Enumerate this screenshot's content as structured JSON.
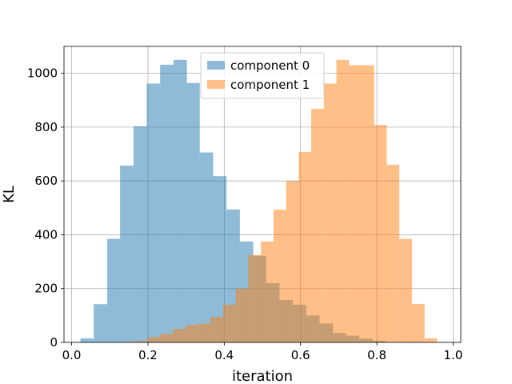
{
  "chart_data": {
    "type": "bar",
    "title": "",
    "xlabel": "iteration",
    "ylabel": "KL",
    "xlim": [
      -0.02,
      1.02
    ],
    "ylim": [
      0,
      1100
    ],
    "xticks": [
      0.0,
      0.2,
      0.4,
      0.6,
      0.8,
      1.0
    ],
    "xtick_labels": [
      "0.0",
      "0.2",
      "0.4",
      "0.6",
      "0.8",
      "1.0"
    ],
    "yticks": [
      0,
      200,
      400,
      600,
      800,
      1000
    ],
    "ytick_labels": [
      "0",
      "200",
      "400",
      "600",
      "800",
      "1000"
    ],
    "grid": true,
    "legend_position": "top-center",
    "series": [
      {
        "name": "component 0",
        "color": "#1f77b4",
        "opacity": 0.5,
        "bins": [
          [
            0.023,
            0.058,
            15
          ],
          [
            0.058,
            0.093,
            142
          ],
          [
            0.093,
            0.127,
            385
          ],
          [
            0.127,
            0.162,
            657
          ],
          [
            0.162,
            0.197,
            803
          ],
          [
            0.197,
            0.232,
            962
          ],
          [
            0.232,
            0.267,
            1032
          ],
          [
            0.267,
            0.302,
            1050
          ],
          [
            0.302,
            0.336,
            964
          ],
          [
            0.336,
            0.371,
            706
          ],
          [
            0.371,
            0.406,
            618
          ],
          [
            0.406,
            0.441,
            494
          ],
          [
            0.441,
            0.476,
            375
          ],
          [
            0.476,
            0.51,
            322
          ],
          [
            0.51,
            0.545,
            220
          ],
          [
            0.545,
            0.58,
            158
          ],
          [
            0.58,
            0.615,
            140
          ],
          [
            0.615,
            0.65,
            100
          ],
          [
            0.65,
            0.685,
            70
          ],
          [
            0.685,
            0.719,
            35
          ],
          [
            0.719,
            0.754,
            25
          ],
          [
            0.754,
            0.789,
            14
          ],
          [
            0.789,
            0.824,
            6
          ]
        ]
      },
      {
        "name": "component 1",
        "color": "#ff7f0e",
        "opacity": 0.5,
        "bins": [
          [
            0.1,
            0.133,
            1
          ],
          [
            0.133,
            0.166,
            2
          ],
          [
            0.166,
            0.199,
            5
          ],
          [
            0.199,
            0.232,
            20
          ],
          [
            0.232,
            0.265,
            32
          ],
          [
            0.265,
            0.298,
            50
          ],
          [
            0.298,
            0.331,
            65
          ],
          [
            0.331,
            0.364,
            70
          ],
          [
            0.364,
            0.397,
            95
          ],
          [
            0.397,
            0.43,
            140
          ],
          [
            0.43,
            0.463,
            200
          ],
          [
            0.463,
            0.496,
            325
          ],
          [
            0.496,
            0.529,
            375
          ],
          [
            0.529,
            0.562,
            493
          ],
          [
            0.562,
            0.595,
            600
          ],
          [
            0.595,
            0.628,
            708
          ],
          [
            0.628,
            0.661,
            868
          ],
          [
            0.661,
            0.694,
            962
          ],
          [
            0.694,
            0.727,
            1050
          ],
          [
            0.727,
            0.76,
            1030
          ],
          [
            0.76,
            0.793,
            1030
          ],
          [
            0.793,
            0.826,
            808
          ],
          [
            0.826,
            0.859,
            660
          ],
          [
            0.859,
            0.892,
            385
          ],
          [
            0.892,
            0.925,
            143
          ],
          [
            0.925,
            0.958,
            15
          ]
        ]
      }
    ]
  }
}
